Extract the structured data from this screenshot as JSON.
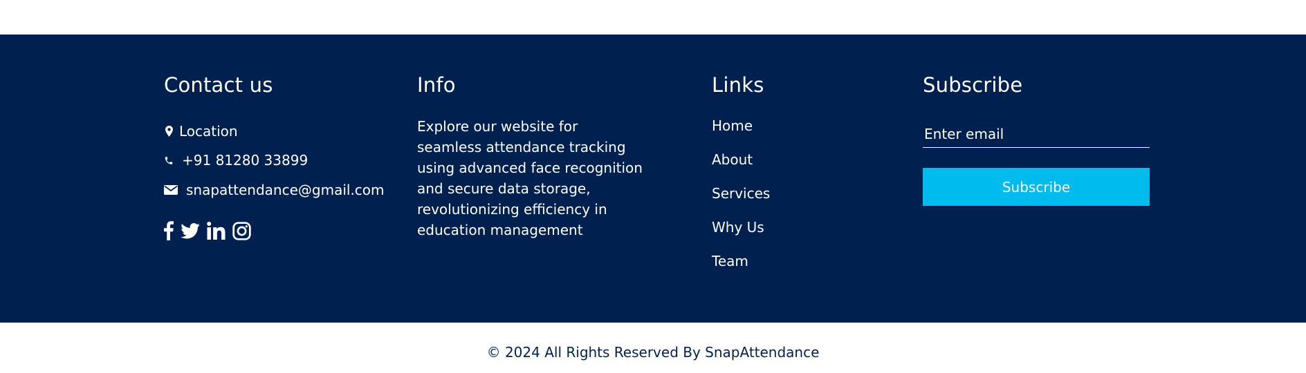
{
  "colors": {
    "footer_bg": "#00214f",
    "accent": "#00bbee",
    "text_light": "#ffffff"
  },
  "contact": {
    "title": "Contact us",
    "location": "Location",
    "phone": "+91 81280 33899",
    "email": "snapattendance@gmail.com",
    "social_icons": [
      "facebook-icon",
      "twitter-icon",
      "linkedin-icon",
      "instagram-icon"
    ]
  },
  "info": {
    "title": "Info",
    "text": "Explore our website for seamless attendance tracking using advanced face recognition and secure data storage, revolutionizing efficiency in education management"
  },
  "links": {
    "title": "Links",
    "items": [
      "Home",
      "About",
      "Services",
      "Why Us",
      "Team"
    ]
  },
  "subscribe": {
    "title": "Subscribe",
    "placeholder": "Enter email",
    "button_label": "Subscribe"
  },
  "copyright": "© 2024 All Rights Reserved By SnapAttendance"
}
